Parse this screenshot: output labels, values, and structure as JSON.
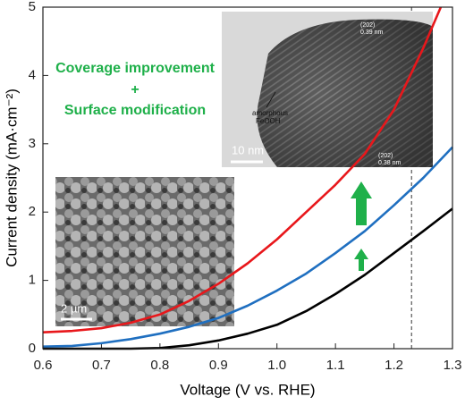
{
  "chart_data": {
    "type": "line",
    "xlabel": "Voltage (V vs. RHE)",
    "ylabel": "Current density (mA·cm⁻²)",
    "xlim": [
      0.6,
      1.3
    ],
    "ylim": [
      0,
      5
    ],
    "xticks": [
      0.6,
      0.7,
      0.8,
      0.9,
      {
        "value": 1,
        "label": "1.0"
      },
      1.1,
      1.2,
      1.3
    ],
    "yticks": [
      0,
      1,
      2,
      3,
      4,
      5
    ],
    "vline": 1.23,
    "series": [
      {
        "color": "#e8171b",
        "x": [
          0.6,
          0.65,
          0.7,
          0.75,
          0.8,
          0.85,
          0.9,
          0.95,
          1.0,
          1.05,
          1.1,
          1.15,
          1.2,
          1.25,
          1.28
        ],
        "values": [
          0.24,
          0.26,
          0.3,
          0.38,
          0.5,
          0.7,
          0.95,
          1.25,
          1.6,
          2.0,
          2.4,
          2.85,
          3.5,
          4.4,
          5.0
        ]
      },
      {
        "color": "#1f6fc0",
        "x": [
          0.6,
          0.65,
          0.7,
          0.75,
          0.8,
          0.85,
          0.9,
          0.95,
          1.0,
          1.05,
          1.1,
          1.15,
          1.2,
          1.25,
          1.3
        ],
        "values": [
          0.03,
          0.04,
          0.08,
          0.14,
          0.22,
          0.32,
          0.45,
          0.63,
          0.85,
          1.1,
          1.4,
          1.72,
          2.1,
          2.5,
          2.95
        ]
      },
      {
        "color": "#000000",
        "x": [
          0.6,
          0.65,
          0.7,
          0.75,
          0.8,
          0.85,
          0.9,
          0.95,
          1.0,
          1.05,
          1.1,
          1.15,
          1.2,
          1.25,
          1.3
        ],
        "values": [
          0,
          0,
          0,
          0,
          0.01,
          0.05,
          0.12,
          0.22,
          0.35,
          0.55,
          0.8,
          1.08,
          1.4,
          1.72,
          2.05
        ]
      }
    ],
    "annotations": [
      "Coverage improvement",
      "+",
      "Surface modification",
      "2 µm",
      "10 nm",
      "amorphous",
      "FeOOH",
      "(202)",
      "0.39 nm",
      "(202)",
      "0.38 nm"
    ]
  }
}
